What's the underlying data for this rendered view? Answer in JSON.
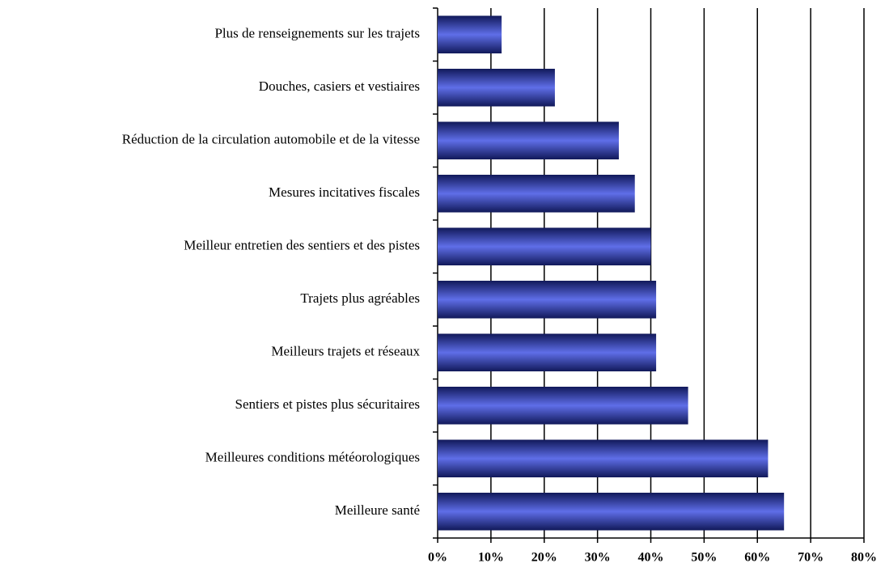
{
  "chart_data": {
    "type": "barh",
    "categories": [
      "Plus de renseignements sur les trajets",
      "Douches, casiers et vestiaires",
      "Réduction de la circulation automobile et de la vitesse",
      "Mesures incitatives fiscales",
      "Meilleur entretien des sentiers et des pistes",
      "Trajets plus agréables",
      "Meilleurs trajets et réseaux",
      "Sentiers et pistes plus sécuritaires",
      "Meilleures conditions météorologiques",
      "Meilleure santé"
    ],
    "values": [
      12,
      22,
      34,
      37,
      40,
      41,
      41,
      47,
      62,
      65
    ],
    "color": "#2a3ee0",
    "xlim": [
      0,
      80
    ],
    "xticks": [
      {
        "value": 0,
        "label": "0%"
      },
      {
        "value": 10,
        "label": "10%"
      },
      {
        "value": 20,
        "label": "20%"
      },
      {
        "value": 30,
        "label": "30%"
      },
      {
        "value": 40,
        "label": "40%"
      },
      {
        "value": 50,
        "label": "50%"
      },
      {
        "value": 60,
        "label": "60%"
      },
      {
        "value": 70,
        "label": "70%"
      },
      {
        "value": 80,
        "label": "80%"
      }
    ],
    "grid": true
  }
}
